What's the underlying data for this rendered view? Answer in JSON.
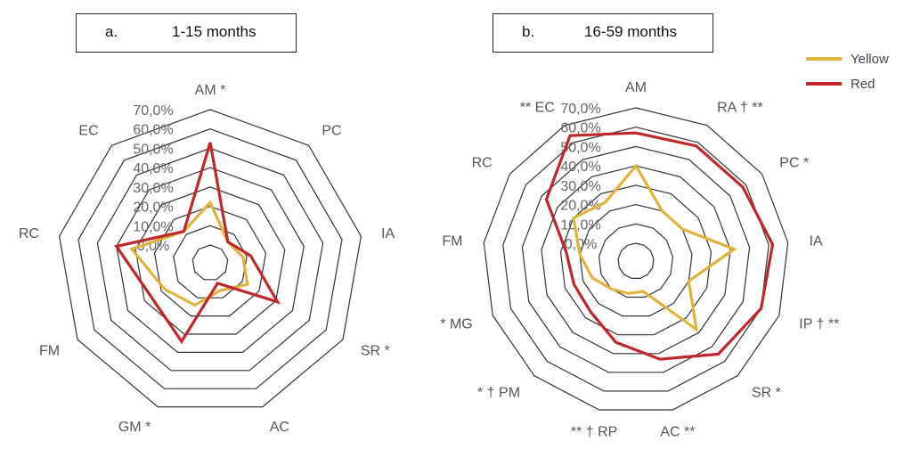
{
  "legend": {
    "items": [
      {
        "label": "Yellow",
        "color": "#e0b43c"
      },
      {
        "label": "Red",
        "color": "#c0262c"
      }
    ]
  },
  "chart_data": [
    {
      "type": "radar",
      "panel_letter": "a.",
      "title": "1-15 months",
      "rlim": [
        0,
        70
      ],
      "ticks": [
        "0,0%",
        "10,0%",
        "20,0%",
        "30,0%",
        "40,0%",
        "50,0%",
        "60,0%",
        "70,0%"
      ],
      "categories": [
        "AM *",
        "PC",
        "IA",
        "SR *",
        "AC",
        "GM *",
        "FM",
        "RC",
        "EC"
      ],
      "series": [
        {
          "name": "Yellow",
          "color": "#e0b43c",
          "values": [
            22,
            5,
            8,
            13,
            6,
            14,
            18,
            32,
            12
          ]
        },
        {
          "name": "Red",
          "color": "#c0262c",
          "values": [
            53,
            5,
            12,
            31,
            2,
            34,
            26,
            40,
            12
          ]
        }
      ]
    },
    {
      "type": "radar",
      "panel_letter": "b.",
      "title": "16-59 months",
      "rlim": [
        0,
        70
      ],
      "ticks": [
        "0,0%",
        "10,0%",
        "20,0%",
        "30,0%",
        "40,0%",
        "50,0%",
        "60,0%",
        "70,0%"
      ],
      "categories": [
        "AM",
        "RA † **",
        "PC *",
        "IA",
        "IP † **",
        "SR *",
        "AC **",
        "** † RP",
        "* † PM",
        "* MG",
        "FM",
        "RC",
        "** EC"
      ],
      "series": [
        {
          "name": "Yellow",
          "color": "#e0b43c",
          "values": [
            40,
            20,
            20,
            42,
            20,
            38,
            7,
            8,
            10,
            15,
            20,
            30,
            25
          ]
        },
        {
          "name": "Red",
          "color": "#c0262c",
          "values": [
            57,
            58,
            58,
            62,
            60,
            55,
            43,
            34,
            26,
            25,
            27,
            47,
            64
          ]
        }
      ]
    }
  ]
}
